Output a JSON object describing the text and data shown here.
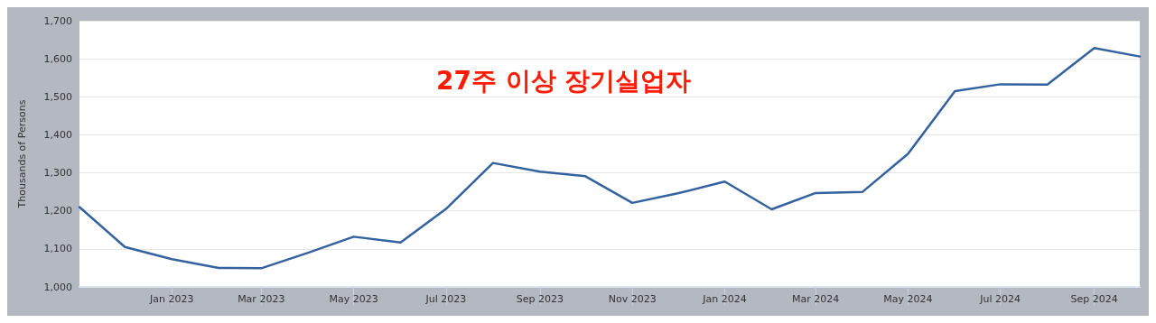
{
  "chart_data": {
    "type": "line",
    "title": "27주 이상 장기실업자",
    "ylabel": "Thousands of Persons",
    "x": [
      "2022-11",
      "2022-12",
      "2023-01",
      "2023-02",
      "2023-03",
      "2023-04",
      "2023-05",
      "2023-06",
      "2023-07",
      "2023-08",
      "2023-09",
      "2023-10",
      "2023-11",
      "2023-12",
      "2024-01",
      "2024-02",
      "2024-03",
      "2024-04",
      "2024-05",
      "2024-06",
      "2024-07",
      "2024-08",
      "2024-09",
      "2024-10"
    ],
    "series": [
      {
        "color": "#33629e",
        "values": [
          1210,
          1105,
          1073,
          1050,
          1049,
          1090,
          1132,
          1117,
          1205,
          1326,
          1303,
          1291,
          1221,
          1246,
          1277,
          1204,
          1247,
          1250,
          1350,
          1515,
          1533,
          1532,
          1628,
          1606
        ]
      }
    ],
    "xlim": [
      "2022-11",
      "2024-10"
    ],
    "xticks": [
      {
        "value": "2023-01",
        "label": "Jan 2023"
      },
      {
        "value": "2023-03",
        "label": "Mar 2023"
      },
      {
        "value": "2023-05",
        "label": "May 2023"
      },
      {
        "value": "2023-07",
        "label": "Jul 2023"
      },
      {
        "value": "2023-09",
        "label": "Sep 2023"
      },
      {
        "value": "2023-11",
        "label": "Nov 2023"
      },
      {
        "value": "2024-01",
        "label": "Jan 2024"
      },
      {
        "value": "2024-03",
        "label": "Mar 2024"
      },
      {
        "value": "2024-05",
        "label": "May 2024"
      },
      {
        "value": "2024-07",
        "label": "Jul 2024"
      },
      {
        "value": "2024-09",
        "label": "Sep 2024"
      }
    ],
    "ylim": [
      1000,
      1700
    ],
    "yticks": [
      {
        "value": 1000,
        "label": "1,000"
      },
      {
        "value": 1100,
        "label": "1,100"
      },
      {
        "value": 1200,
        "label": "1,200"
      },
      {
        "value": 1300,
        "label": "1,300"
      },
      {
        "value": 1400,
        "label": "1,400"
      },
      {
        "value": 1500,
        "label": "1,500"
      },
      {
        "value": 1600,
        "label": "1,600"
      },
      {
        "value": 1700,
        "label": "1,700"
      }
    ],
    "grid": "y",
    "marker": "none",
    "line_style": "solid"
  }
}
